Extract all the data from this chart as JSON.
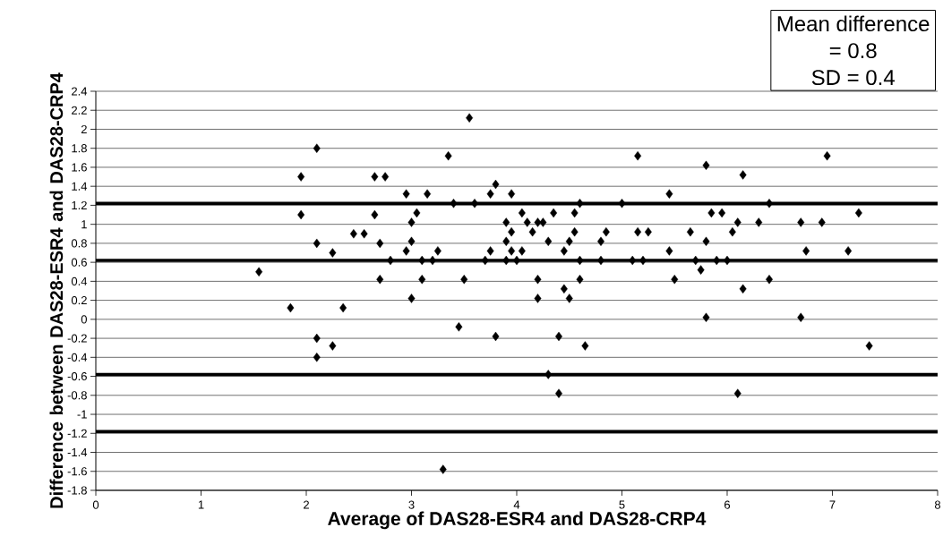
{
  "chart_data": {
    "type": "scatter",
    "xlabel": "Average of DAS28-ESR4 and DAS28-CRP4",
    "ylabel": "Difference between DAS28-ESR4 and DAS28-CRP4",
    "x": [
      1.55,
      1.85,
      1.95,
      1.95,
      2.1,
      2.1,
      2.1,
      2.1,
      2.25,
      2.35,
      2.25,
      2.45,
      2.55,
      2.65,
      2.75,
      2.65,
      2.7,
      2.7,
      2.8,
      2.95,
      2.95,
      3.0,
      3.0,
      3.0,
      3.05,
      3.1,
      3.1,
      3.15,
      3.2,
      3.25,
      3.3,
      3.35,
      3.4,
      3.45,
      3.5,
      3.55,
      3.6,
      3.7,
      3.75,
      3.75,
      3.8,
      3.8,
      3.9,
      3.9,
      3.9,
      3.95,
      3.95,
      3.95,
      4.0,
      4.05,
      4.05,
      4.1,
      4.15,
      4.2,
      4.2,
      4.2,
      4.25,
      4.3,
      4.3,
      4.35,
      4.4,
      4.4,
      4.45,
      4.45,
      4.5,
      4.5,
      4.55,
      4.55,
      4.6,
      4.6,
      4.6,
      4.65,
      4.8,
      4.8,
      4.85,
      5.0,
      5.1,
      5.15,
      5.15,
      5.2,
      5.25,
      5.45,
      5.45,
      5.5,
      5.65,
      5.7,
      5.75,
      5.8,
      5.8,
      5.8,
      5.85,
      5.9,
      5.95,
      6.0,
      6.05,
      6.1,
      6.1,
      6.15,
      6.15,
      6.3,
      6.4,
      6.4,
      6.7,
      6.7,
      6.75,
      6.9,
      6.95,
      7.15,
      7.25,
      7.35
    ],
    "values": [
      0.5,
      0.12,
      1.5,
      1.1,
      1.8,
      0.8,
      -0.2,
      -0.4,
      0.7,
      0.12,
      -0.28,
      0.9,
      0.9,
      1.5,
      1.5,
      1.1,
      0.8,
      0.42,
      0.62,
      1.32,
      0.72,
      1.02,
      0.82,
      0.22,
      1.12,
      0.62,
      0.42,
      1.32,
      0.62,
      0.72,
      -1.58,
      1.72,
      1.22,
      -0.08,
      0.42,
      2.12,
      1.22,
      0.62,
      1.32,
      0.72,
      1.42,
      -0.18,
      1.02,
      0.82,
      0.62,
      1.32,
      0.92,
      0.72,
      0.62,
      1.12,
      0.72,
      1.02,
      0.92,
      1.02,
      0.42,
      0.22,
      1.02,
      -0.58,
      0.82,
      1.12,
      -0.78,
      -0.18,
      0.32,
      0.72,
      0.82,
      0.22,
      0.92,
      1.12,
      1.22,
      0.62,
      0.42,
      -0.28,
      0.62,
      0.82,
      0.92,
      1.22,
      0.62,
      1.72,
      0.92,
      0.62,
      0.92,
      1.32,
      0.72,
      0.42,
      0.92,
      0.62,
      0.52,
      1.62,
      0.82,
      0.02,
      1.12,
      0.62,
      1.12,
      0.62,
      0.92,
      1.02,
      -0.78,
      1.52,
      0.32,
      1.02,
      1.22,
      0.42,
      1.02,
      0.02,
      0.72,
      1.02,
      1.72,
      0.72,
      1.12,
      -0.28
    ],
    "color": "#000000",
    "marker": "diamond",
    "grid": "y",
    "xlim": [
      0,
      8
    ],
    "xticks": [
      0,
      1,
      2,
      3,
      4,
      5,
      6,
      7,
      8
    ],
    "ylim": [
      -1.8,
      2.4
    ],
    "yticks": [
      -1.8,
      -1.6,
      -1.4,
      -1.2,
      -1,
      -0.8,
      -0.6,
      -0.4,
      -0.2,
      0,
      0.2,
      0.4,
      0.6,
      0.8,
      1,
      1.2,
      1.4,
      1.6,
      1.8,
      2,
      2.2,
      2.4
    ],
    "ref_lines": [
      {
        "axis": "y",
        "value": 1.22,
        "color": "#000000"
      },
      {
        "axis": "y",
        "value": 0.62,
        "color": "#000000"
      },
      {
        "axis": "y",
        "value": -0.58,
        "color": "#000000"
      },
      {
        "axis": "y",
        "value": -1.18,
        "color": "#000000"
      }
    ],
    "annotations": [
      "Mean difference",
      "= 0.8",
      "SD = 0.4"
    ]
  }
}
